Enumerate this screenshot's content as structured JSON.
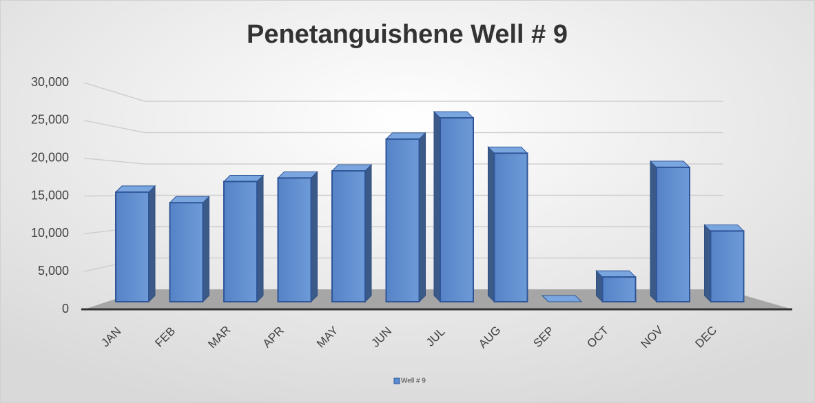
{
  "chart_data": {
    "type": "bar3d",
    "title": "Penetanguishene Well # 9",
    "categories": [
      "JAN",
      "FEB",
      "MAR",
      "APR",
      "MAY",
      "JUN",
      "JUL",
      "AUG",
      "SEP",
      "OCT",
      "NOV",
      "DEC"
    ],
    "series": [
      {
        "name": "Well # 9",
        "color": "#5b8bd0",
        "values": [
          15500,
          14000,
          17000,
          17500,
          18500,
          23000,
          26000,
          21000,
          0,
          3500,
          19000,
          10000
        ]
      }
    ],
    "ylim": [
      0,
      30000
    ],
    "yticks": [
      0,
      {
        "value": 5000,
        "label": "5,000"
      },
      {
        "value": 10000,
        "label": "10,000"
      },
      {
        "value": 15000,
        "label": "15,000"
      },
      {
        "value": 20000,
        "label": "20,000"
      },
      {
        "value": 25000,
        "label": "25,000"
      },
      {
        "value": 30000,
        "label": "30,000"
      }
    ],
    "grid": true,
    "legend": "bottom"
  }
}
